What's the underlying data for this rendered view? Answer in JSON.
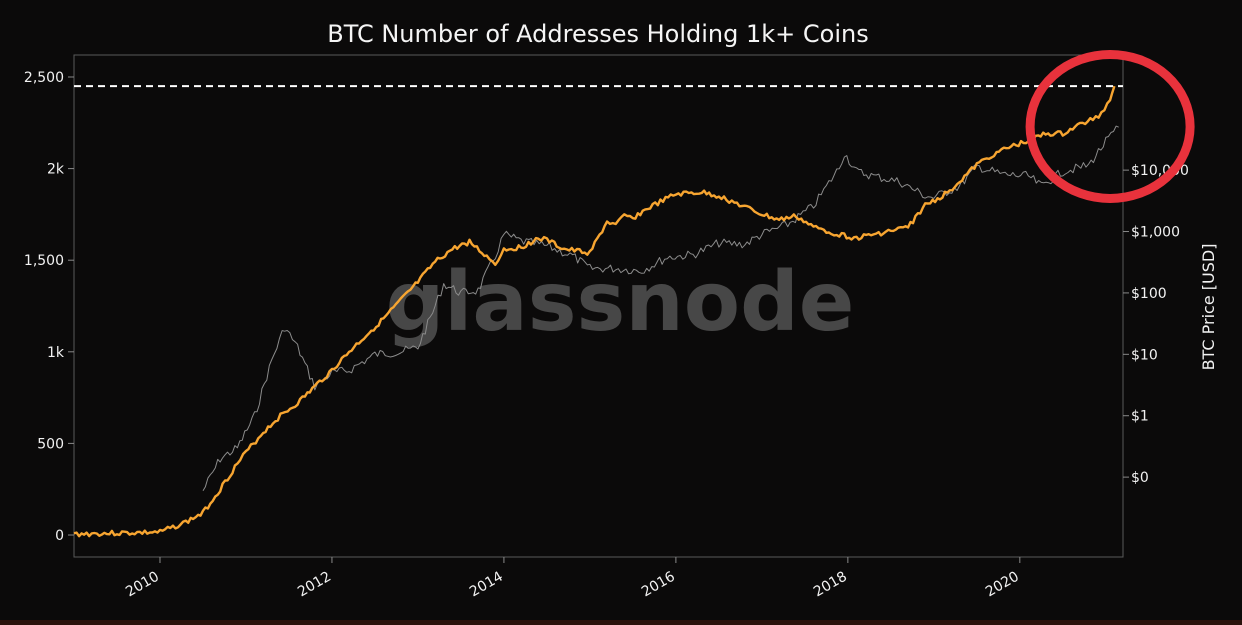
{
  "chart_data": {
    "type": "line",
    "title": "BTC Number of Addresses Holding 1k+ Coins",
    "xlabel": "",
    "ylabel": "",
    "y2label": "BTC Price [USD]",
    "watermark": "glassnode",
    "xlim": [
      2009.0,
      2021.2
    ],
    "ylim": [
      -120,
      2620
    ],
    "y2_scale": "log",
    "y2lim": [
      0.005,
      750000
    ],
    "x_ticks": [
      2010,
      2012,
      2014,
      2016,
      2018,
      2020
    ],
    "x_tick_labels": [
      "2010",
      "2012",
      "2014",
      "2016",
      "2018",
      "2020"
    ],
    "y_ticks": [
      0,
      500,
      1000,
      1500,
      2000,
      2500
    ],
    "y_tick_labels": [
      "0",
      "500",
      "1k",
      "1,500",
      "2k",
      "2,500"
    ],
    "y2_ticks": [
      0.1,
      1,
      10,
      100,
      1000,
      10000
    ],
    "y2_tick_labels": [
      "$0",
      "$1",
      "$10",
      "$100",
      "$1,000",
      "$10,000"
    ],
    "reference_line": {
      "y": 2450,
      "style": "dashed",
      "color": "#ffffff"
    },
    "highlight": {
      "shape": "ellipse",
      "color": "#e8323c",
      "x": 2021.05,
      "y": 2230
    },
    "colors": {
      "addresses": "#f7a531",
      "price": "#8c8c8c",
      "highlight": "#e8323c"
    },
    "series": [
      {
        "key": "addresses",
        "axis": "left",
        "x": [
          2009.0,
          2010.0,
          2010.3,
          2010.5,
          2010.7,
          2010.9,
          2011.0,
          2011.2,
          2011.4,
          2011.6,
          2011.8,
          2012.0,
          2012.2,
          2012.4,
          2012.6,
          2012.8,
          2013.0,
          2013.2,
          2013.4,
          2013.6,
          2013.8,
          2013.9,
          2014.0,
          2014.2,
          2014.4,
          2014.5,
          2014.7,
          2015.0,
          2015.2,
          2015.3,
          2015.4,
          2015.5,
          2015.7,
          2016.0,
          2016.3,
          2016.5,
          2016.8,
          2017.0,
          2017.2,
          2017.4,
          2017.6,
          2017.9,
          2018.1,
          2018.3,
          2018.5,
          2018.7,
          2018.9,
          2019.1,
          2019.3,
          2019.5,
          2019.7,
          2019.9,
          2020.1,
          2020.3,
          2020.5,
          2020.7,
          2020.85,
          2020.95,
          2021.05,
          2021.1
        ],
        "y": [
          5,
          15,
          70,
          120,
          250,
          390,
          450,
          560,
          650,
          720,
          810,
          900,
          1000,
          1090,
          1180,
          1280,
          1380,
          1490,
          1560,
          1600,
          1520,
          1480,
          1560,
          1570,
          1620,
          1610,
          1560,
          1540,
          1710,
          1690,
          1740,
          1730,
          1790,
          1860,
          1870,
          1850,
          1790,
          1750,
          1720,
          1740,
          1680,
          1640,
          1620,
          1640,
          1660,
          1680,
          1800,
          1850,
          1930,
          2020,
          2080,
          2120,
          2150,
          2190,
          2190,
          2240,
          2270,
          2300,
          2380,
          2450
        ]
      },
      {
        "key": "price",
        "axis": "right",
        "x": [
          2010.5,
          2010.7,
          2010.9,
          2011.1,
          2011.3,
          2011.45,
          2011.6,
          2011.8,
          2012.0,
          2012.2,
          2012.5,
          2012.8,
          2013.0,
          2013.2,
          2013.3,
          2013.5,
          2013.7,
          2013.9,
          2014.0,
          2014.2,
          2014.5,
          2014.8,
          2015.0,
          2015.3,
          2015.6,
          2015.9,
          2016.2,
          2016.5,
          2016.8,
          2017.0,
          2017.3,
          2017.6,
          2017.9,
          2017.96,
          2018.1,
          2018.3,
          2018.6,
          2018.9,
          2019.0,
          2019.3,
          2019.5,
          2019.8,
          2020.1,
          2020.25,
          2020.5,
          2020.8,
          2021.0,
          2021.15
        ],
        "y": [
          0.06,
          0.2,
          0.3,
          1.0,
          8,
          28,
          13,
          3,
          5,
          5.5,
          10,
          11,
          13,
          60,
          140,
          100,
          110,
          400,
          900,
          700,
          580,
          400,
          250,
          250,
          230,
          380,
          420,
          650,
          620,
          900,
          1300,
          2600,
          11000,
          19000,
          9500,
          8000,
          6500,
          3800,
          3600,
          5500,
          11500,
          8500,
          8000,
          5500,
          9500,
          12000,
          29000,
          50000
        ]
      }
    ]
  }
}
